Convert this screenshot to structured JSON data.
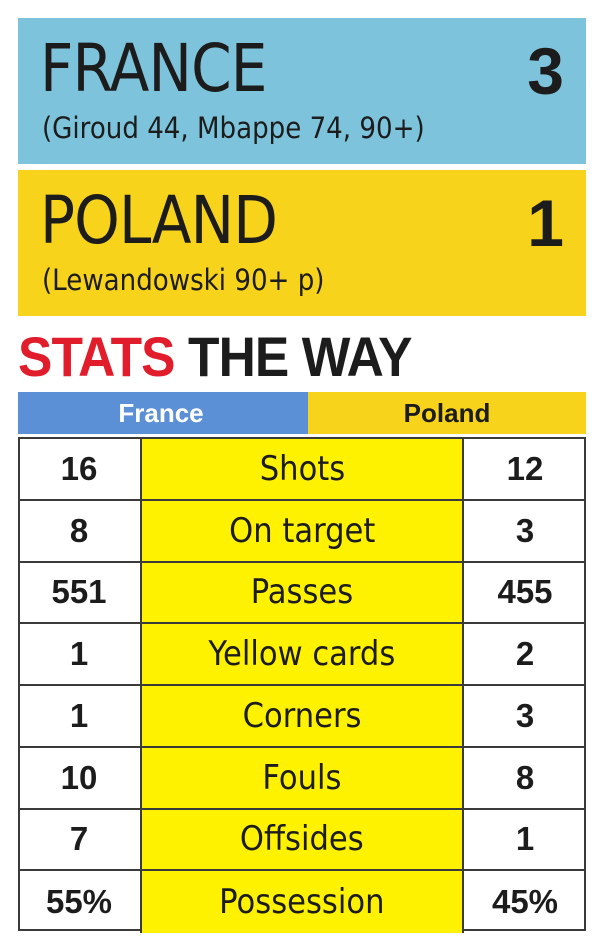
{
  "teams": {
    "france": {
      "name": "FRANCE",
      "score": "3",
      "scorers": "(Giroud 44, Mbappe 74, 90+)",
      "color": "#7ec3dc"
    },
    "poland": {
      "name": "POLAND",
      "score": "1",
      "scorers": "(Lewandowski 90+ p)",
      "color": "#f8d31b"
    }
  },
  "headline": {
    "part1": "STATS",
    "part2": "THE WAY",
    "part1_color": "#e11d2b"
  },
  "table": {
    "left_header": "France",
    "right_header": "Poland",
    "rows": [
      {
        "left": "16",
        "label": "Shots",
        "right": "12"
      },
      {
        "left": "8",
        "label": "On target",
        "right": "3"
      },
      {
        "left": "551",
        "label": "Passes",
        "right": "455"
      },
      {
        "left": "1",
        "label": "Yellow cards",
        "right": "2"
      },
      {
        "left": "1",
        "label": "Corners",
        "right": "3"
      },
      {
        "left": "10",
        "label": "Fouls",
        "right": "8"
      },
      {
        "left": "7",
        "label": "Offsides",
        "right": "1"
      },
      {
        "left": "55%",
        "label": "Possession",
        "right": "45%"
      }
    ]
  }
}
